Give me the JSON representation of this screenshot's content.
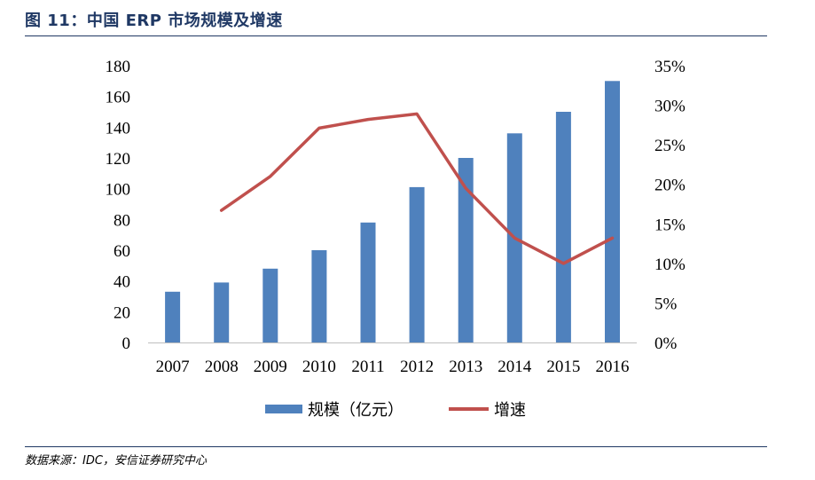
{
  "figure": {
    "title": "图 11：中国 ERP 市场规模及增速",
    "source": "数据来源：IDC，安信证券研究中心"
  },
  "chart_data": {
    "type": "bar",
    "categories": [
      "2007",
      "2008",
      "2009",
      "2010",
      "2011",
      "2012",
      "2013",
      "2014",
      "2015",
      "2016"
    ],
    "series": [
      {
        "name": "规模（亿元）",
        "kind": "bar",
        "axis": "left",
        "color": "#4f81bd",
        "values": [
          33,
          39,
          48,
          60,
          78,
          101,
          120,
          136,
          150,
          170
        ]
      },
      {
        "name": "增速",
        "kind": "line",
        "axis": "right",
        "color": "#c0504d",
        "values": [
          null,
          0.167,
          0.21,
          0.271,
          0.282,
          0.289,
          0.195,
          0.132,
          0.1,
          0.132
        ]
      }
    ],
    "y_left": {
      "lim": [
        0,
        180
      ],
      "ticks": [
        "0",
        "20",
        "40",
        "60",
        "80",
        "100",
        "120",
        "140",
        "160",
        "180"
      ]
    },
    "y_right": {
      "lim": [
        0,
        0.35
      ],
      "ticks": [
        "0%",
        "5%",
        "10%",
        "15%",
        "20%",
        "25%",
        "30%",
        "35%"
      ]
    },
    "grid": false,
    "legend_position": "bottom"
  }
}
